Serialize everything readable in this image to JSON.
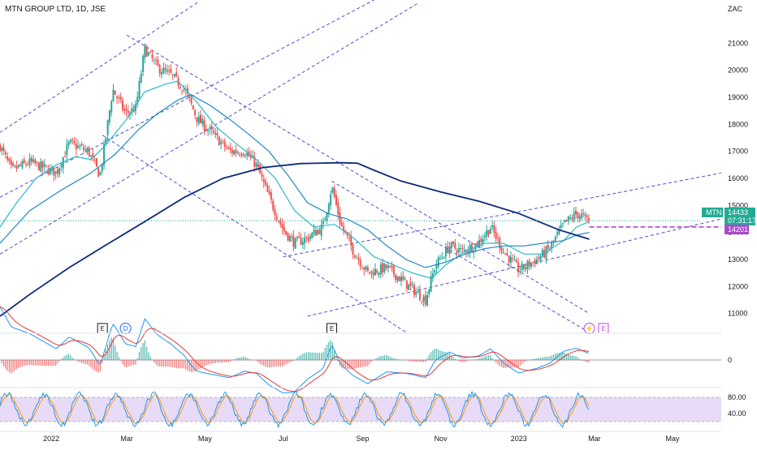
{
  "header": {
    "symbol_line": "MTN GROUP LTD, 1D, JSE",
    "currency": "ZAC"
  },
  "chart_data": {
    "type": "candlestick",
    "title": "MTN GROUP LTD, 1D, JSE",
    "y_unit": "ZAC",
    "ylim": [
      10300,
      22000
    ],
    "y_ticks": [
      11000,
      12000,
      13000,
      14000,
      15000,
      16000,
      17000,
      18000,
      19000,
      20000,
      21000
    ],
    "x_ticks": [
      "2022",
      "Mar",
      "May",
      "Jul",
      "Sep",
      "Nov",
      "2023",
      "Mar",
      "May"
    ],
    "xlim": [
      "2021-11-22",
      "2023-06-08"
    ],
    "x_tick_dates": [
      "2022-01-01",
      "2022-03-01",
      "2022-05-01",
      "2022-07-01",
      "2022-09-01",
      "2022-11-01",
      "2023-01-01",
      "2023-03-01",
      "2023-05-01"
    ],
    "close_path": [
      [
        "2021-11-22",
        17200
      ],
      [
        "2021-12-01",
        16300
      ],
      [
        "2021-12-15",
        16600
      ],
      [
        "2022-01-05",
        16200
      ],
      [
        "2022-01-15",
        17300
      ],
      [
        "2022-01-30",
        17000
      ],
      [
        "2022-02-08",
        16100
      ],
      [
        "2022-02-10",
        16700
      ],
      [
        "2022-02-18",
        19300
      ],
      [
        "2022-02-28",
        18400
      ],
      [
        "2022-03-08",
        18600
      ],
      [
        "2022-03-15",
        20800
      ],
      [
        "2022-03-25",
        20100
      ],
      [
        "2022-04-05",
        19800
      ],
      [
        "2022-04-15",
        19300
      ],
      [
        "2022-04-25",
        18200
      ],
      [
        "2022-05-08",
        17600
      ],
      [
        "2022-05-20",
        17000
      ],
      [
        "2022-06-01",
        17000
      ],
      [
        "2022-06-10",
        16500
      ],
      [
        "2022-06-20",
        15300
      ],
      [
        "2022-07-01",
        14100
      ],
      [
        "2022-07-10",
        13600
      ],
      [
        "2022-07-20",
        13800
      ],
      [
        "2022-08-01",
        14200
      ],
      [
        "2022-08-08",
        15700
      ],
      [
        "2022-08-15",
        14300
      ],
      [
        "2022-08-25",
        13300
      ],
      [
        "2022-09-05",
        12500
      ],
      [
        "2022-09-20",
        12700
      ],
      [
        "2022-10-05",
        12100
      ],
      [
        "2022-10-20",
        11500
      ],
      [
        "2022-10-28",
        12800
      ],
      [
        "2022-11-08",
        13500
      ],
      [
        "2022-11-18",
        13300
      ],
      [
        "2022-11-30",
        13600
      ],
      [
        "2022-12-10",
        14200
      ],
      [
        "2022-12-20",
        13300
      ],
      [
        "2023-01-01",
        12600
      ],
      [
        "2023-01-15",
        13000
      ],
      [
        "2023-01-25",
        13400
      ],
      [
        "2023-02-05",
        14300
      ],
      [
        "2023-02-15",
        14700
      ],
      [
        "2023-02-25",
        14433
      ]
    ],
    "series": [
      {
        "type": "line",
        "points": [
          [
            "2021-11-22",
            14200
          ],
          [
            "2021-12-05",
            15100
          ],
          [
            "2021-12-20",
            16000
          ],
          [
            "2022-01-05",
            16500
          ],
          [
            "2022-01-20",
            16800
          ],
          [
            "2022-02-01",
            16700
          ],
          [
            "2022-02-12",
            17200
          ],
          [
            "2022-03-01",
            18200
          ],
          [
            "2022-03-15",
            19200
          ],
          [
            "2022-04-01",
            19500
          ],
          [
            "2022-04-10",
            19600
          ],
          [
            "2022-04-25",
            18800
          ],
          [
            "2022-05-10",
            17900
          ],
          [
            "2022-05-25",
            17300
          ],
          [
            "2022-06-10",
            16700
          ],
          [
            "2022-06-25",
            16000
          ],
          [
            "2022-07-10",
            14800
          ],
          [
            "2022-07-25",
            14200
          ],
          [
            "2022-08-10",
            14300
          ],
          [
            "2022-08-25",
            13800
          ],
          [
            "2022-09-10",
            13100
          ],
          [
            "2022-09-25",
            12800
          ],
          [
            "2022-10-10",
            12500
          ],
          [
            "2022-10-25",
            12300
          ],
          [
            "2022-11-05",
            12800
          ],
          [
            "2022-11-20",
            13300
          ],
          [
            "2022-12-05",
            13600
          ],
          [
            "2022-12-20",
            13600
          ],
          [
            "2023-01-05",
            13200
          ],
          [
            "2023-01-20",
            13200
          ],
          [
            "2023-02-05",
            13700
          ],
          [
            "2023-02-15",
            14200
          ],
          [
            "2023-02-25",
            14400
          ]
        ]
      },
      {
        "type": "line",
        "points": [
          [
            "2021-11-22",
            13600
          ],
          [
            "2021-12-15",
            14800
          ],
          [
            "2022-01-10",
            15600
          ],
          [
            "2022-02-01",
            16200
          ],
          [
            "2022-02-20",
            16900
          ],
          [
            "2022-03-10",
            17800
          ],
          [
            "2022-03-25",
            18400
          ],
          [
            "2022-04-10",
            18900
          ],
          [
            "2022-04-20",
            19100
          ],
          [
            "2022-05-05",
            18700
          ],
          [
            "2022-05-20",
            18200
          ],
          [
            "2022-06-05",
            17600
          ],
          [
            "2022-06-20",
            17000
          ],
          [
            "2022-07-05",
            16100
          ],
          [
            "2022-07-20",
            15100
          ],
          [
            "2022-08-05",
            14700
          ],
          [
            "2022-08-20",
            14500
          ],
          [
            "2022-09-05",
            14100
          ],
          [
            "2022-09-20",
            13500
          ],
          [
            "2022-10-05",
            13000
          ],
          [
            "2022-10-20",
            12700
          ],
          [
            "2022-11-05",
            12900
          ],
          [
            "2022-11-20",
            13200
          ],
          [
            "2022-12-05",
            13400
          ],
          [
            "2022-12-20",
            13500
          ],
          [
            "2023-01-05",
            13500
          ],
          [
            "2023-01-20",
            13600
          ],
          [
            "2023-02-05",
            13700
          ],
          [
            "2023-02-15",
            13900
          ],
          [
            "2023-02-25",
            14000
          ]
        ]
      },
      {
        "type": "line",
        "points": [
          [
            "2021-11-22",
            10900
          ],
          [
            "2021-12-15",
            11700
          ],
          [
            "2022-01-15",
            12700
          ],
          [
            "2022-02-15",
            13600
          ],
          [
            "2022-03-15",
            14400
          ],
          [
            "2022-04-15",
            15300
          ],
          [
            "2022-05-15",
            16000
          ],
          [
            "2022-06-15",
            16400
          ],
          [
            "2022-07-15",
            16550
          ],
          [
            "2022-08-15",
            16580
          ],
          [
            "2022-08-28",
            16560
          ],
          [
            "2022-09-10",
            16300
          ],
          [
            "2022-10-01",
            15900
          ],
          [
            "2022-11-01",
            15500
          ],
          [
            "2022-12-01",
            15150
          ],
          [
            "2023-01-01",
            14700
          ],
          [
            "2023-02-01",
            14100
          ],
          [
            "2023-02-25",
            13750
          ]
        ]
      }
    ],
    "last_price": 14433,
    "countdown": "07:31:17",
    "level_price": 14201,
    "symbol_tag": "MTN",
    "event_markers": [
      {
        "date": "2022-02-10",
        "label": "E"
      },
      {
        "date": "2022-02-28",
        "label": "D"
      },
      {
        "date": "2022-08-08",
        "label": "E"
      },
      {
        "date": "2023-02-25",
        "label": "⚡"
      },
      {
        "date": "2023-03-08",
        "label": "E"
      }
    ],
    "panes": [
      {
        "name": "macd",
        "zero_label": "0"
      },
      {
        "name": "stochastic",
        "band": [
          20,
          80
        ],
        "tick_labels": [
          "80.00",
          "40.00"
        ]
      }
    ]
  },
  "colors": {
    "up": "#26a69a",
    "down": "#ef5350",
    "ma_fast": "#2ab7ca",
    "ma_slow": "#1e88c7",
    "ma_long": "#0d2a7a",
    "channel": "#4c4cd1",
    "price_tag": "#22ab94",
    "level_tag": "#a84bc9",
    "macd_line": "#2196f3",
    "signal_line": "#e53935",
    "stoch_k": "#2196f3",
    "stoch_d": "#ff9800",
    "stoch_band": "#e1d2f5"
  }
}
